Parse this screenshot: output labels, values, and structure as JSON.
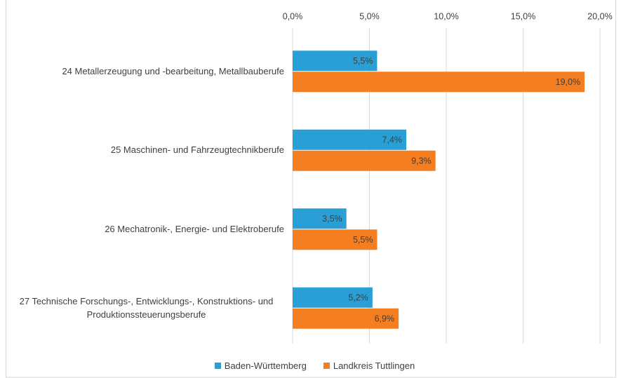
{
  "chart_data": {
    "type": "bar",
    "orientation": "horizontal",
    "categories": [
      "24 Metallerzeugung und -bearbeitung, Metallbauberufe",
      "25 Maschinen- und Fahrzeugtechnikberufe",
      "26 Mechatronik-, Energie- und Elektroberufe",
      "27 Technische Forschungs-, Entwicklungs-, Konstruktions- und Produktionssteuerungsberufe"
    ],
    "series": [
      {
        "name": "Baden-Württemberg",
        "color": "#2a9fd6",
        "values": [
          5.5,
          7.4,
          3.5,
          5.2
        ],
        "value_labels": [
          "5,5%",
          "7,4%",
          "3,5%",
          "5,2%"
        ]
      },
      {
        "name": "Landkreis Tuttlingen",
        "color": "#f57e20",
        "values": [
          19.0,
          9.3,
          5.5,
          6.9
        ],
        "value_labels": [
          "19,0%",
          "9,3%",
          "5,5%",
          "6,9%"
        ]
      }
    ],
    "xlim": [
      0,
      20
    ],
    "xticks": [
      {
        "value": 0,
        "label": "0,0%"
      },
      {
        "value": 5,
        "label": "5,0%"
      },
      {
        "value": 10,
        "label": "10,0%"
      },
      {
        "value": 15,
        "label": "15,0%"
      },
      {
        "value": 20,
        "label": "20,0%"
      }
    ],
    "grid": true,
    "legend": "bottom"
  }
}
